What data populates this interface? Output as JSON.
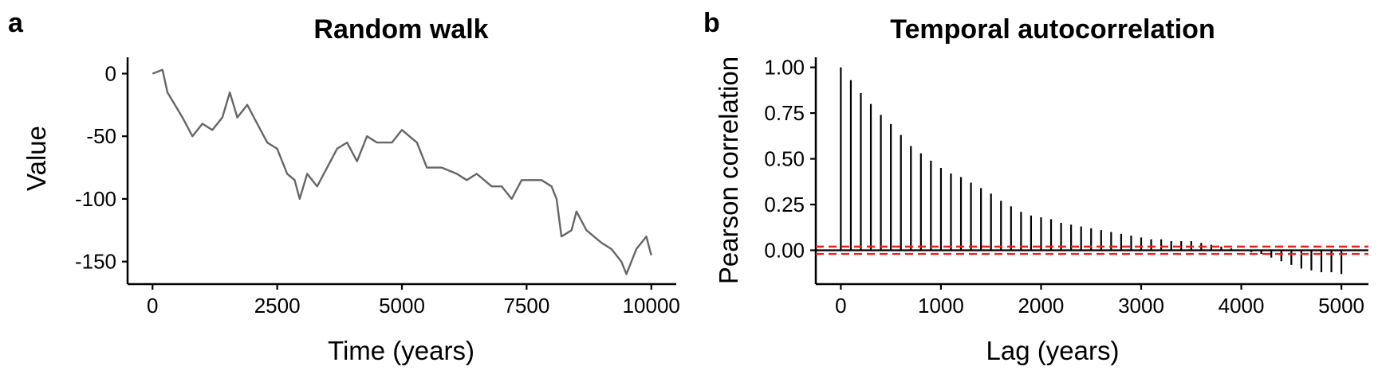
{
  "panels": [
    {
      "letter": "a",
      "title": "Random walk",
      "xlabel": "Time (years)",
      "ylabel": "Value"
    },
    {
      "letter": "b",
      "title": "Temporal autocorrelation",
      "xlabel": "Lag (years)",
      "ylabel": "Pearson correlation"
    }
  ],
  "chart_data": [
    {
      "type": "line",
      "title": "Random walk",
      "xlabel": "Time (years)",
      "ylabel": "Value",
      "xlim": [
        -500,
        10500
      ],
      "ylim": [
        -168,
        13
      ],
      "xticks": [
        0,
        2500,
        5000,
        7500,
        10000
      ],
      "xtick_labels": [
        "0",
        "2500",
        "5000",
        "7500",
        "10000"
      ],
      "yticks": [
        0,
        -50,
        -100,
        -150
      ],
      "ytick_labels": [
        "0",
        "-50",
        "-100",
        "-150"
      ],
      "grid": false,
      "line_color": "#666666",
      "series": [
        {
          "x": [
            0,
            200,
            300,
            600,
            800,
            1000,
            1200,
            1400,
            1550,
            1700,
            1900,
            2100,
            2300,
            2500,
            2700,
            2850,
            2950,
            3100,
            3300,
            3500,
            3700,
            3900,
            4100,
            4300,
            4500,
            4800,
            5000,
            5300,
            5500,
            5800,
            6100,
            6300,
            6500,
            6800,
            7000,
            7200,
            7400,
            7800,
            8000,
            8100,
            8200,
            8400,
            8500,
            8700,
            9000,
            9200,
            9400,
            9500,
            9700,
            9900,
            10000
          ],
          "y": [
            0,
            3,
            -15,
            -35,
            -50,
            -40,
            -45,
            -35,
            -15,
            -35,
            -25,
            -40,
            -55,
            -60,
            -80,
            -85,
            -100,
            -80,
            -90,
            -75,
            -60,
            -55,
            -70,
            -50,
            -55,
            -55,
            -45,
            -55,
            -75,
            -75,
            -80,
            -85,
            -80,
            -90,
            -90,
            -100,
            -85,
            -85,
            -90,
            -100,
            -130,
            -125,
            -110,
            -125,
            -135,
            -140,
            -150,
            -160,
            -140,
            -130,
            -145
          ]
        }
      ]
    },
    {
      "type": "bar",
      "title": "Temporal autocorrelation",
      "xlabel": "Lag (years)",
      "ylabel": "Pearson correlation",
      "xlim": [
        -250,
        5270
      ],
      "ylim": [
        -0.185,
        1.055
      ],
      "xticks": [
        0,
        1000,
        2000,
        3000,
        4000,
        5000
      ],
      "xtick_labels": [
        "0",
        "1000",
        "2000",
        "3000",
        "4000",
        "5000"
      ],
      "yticks": [
        1.0,
        0.75,
        0.5,
        0.25,
        0.0
      ],
      "ytick_labels": [
        "1.00",
        "0.75",
        "0.50",
        "0.25",
        "0.00"
      ],
      "grid": false,
      "bar_color": "#000000",
      "reference_lines": {
        "values": [
          0.02,
          -0.02
        ],
        "color": "#e8211c",
        "style": "dashed"
      },
      "x": [
        0,
        100,
        200,
        300,
        400,
        500,
        600,
        700,
        800,
        900,
        1000,
        1100,
        1200,
        1300,
        1400,
        1500,
        1600,
        1700,
        1800,
        1900,
        2000,
        2100,
        2200,
        2300,
        2400,
        2500,
        2600,
        2700,
        2800,
        2900,
        3000,
        3100,
        3200,
        3300,
        3400,
        3500,
        3600,
        3700,
        3800,
        3900,
        4000,
        4100,
        4200,
        4300,
        4400,
        4500,
        4600,
        4700,
        4800,
        4900,
        5000
      ],
      "values": [
        1.0,
        0.93,
        0.86,
        0.8,
        0.74,
        0.69,
        0.63,
        0.57,
        0.53,
        0.49,
        0.45,
        0.42,
        0.4,
        0.37,
        0.34,
        0.31,
        0.27,
        0.24,
        0.21,
        0.19,
        0.18,
        0.17,
        0.15,
        0.14,
        0.13,
        0.12,
        0.11,
        0.1,
        0.09,
        0.08,
        0.07,
        0.06,
        0.06,
        0.05,
        0.05,
        0.05,
        0.04,
        0.03,
        0.02,
        0.01,
        0.0,
        -0.01,
        -0.02,
        -0.04,
        -0.06,
        -0.08,
        -0.1,
        -0.11,
        -0.12,
        -0.12,
        -0.13
      ]
    }
  ]
}
